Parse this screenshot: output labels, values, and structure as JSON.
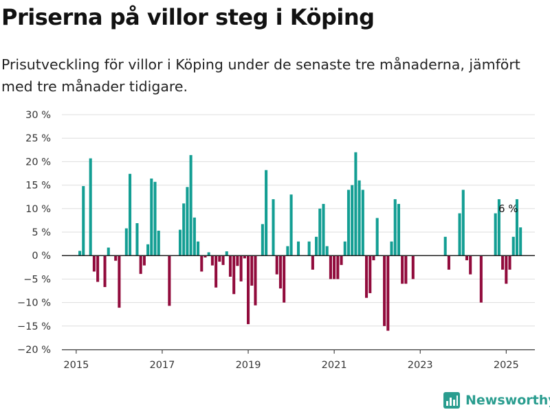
{
  "header": {
    "title": "Priserna på villor steg i Köping",
    "subtitle": "Prisutveckling för villor i Köping under de senaste tre månaderna, jämfört med tre månader tidigare."
  },
  "brand": {
    "name": "Newsworthy",
    "icon": "bar-chart-logo-icon"
  },
  "colors": {
    "positive": "#139e93",
    "negative": "#910b3c",
    "grid": "#dddddd",
    "axis": "#222222",
    "brand": "#2a9d8f"
  },
  "chart_data": {
    "type": "bar",
    "x_start": "2015-02",
    "x_interval": "month",
    "xlim": [
      "2014-09",
      "2025-09"
    ],
    "ylim": [
      -20,
      30
    ],
    "yticks": [
      30,
      25,
      20,
      15,
      10,
      5,
      0,
      -5,
      -10,
      -15,
      -20
    ],
    "ytick_labels": [
      "30 %",
      "25 %",
      "20 %",
      "15 %",
      "10 %",
      "5 %",
      "0 %",
      "−5 %",
      "−10 %",
      "−15 %",
      "−20 %"
    ],
    "xticks": [
      "2015-01",
      "2017-01",
      "2019-01",
      "2021-01",
      "2023-01",
      "2025-01"
    ],
    "xtick_labels": [
      "2015",
      "2017",
      "2019",
      "2021",
      "2023",
      "2025"
    ],
    "grid": true,
    "values": [
      1,
      14.8,
      null,
      20.7,
      -3.4,
      -5.6,
      null,
      -6.7,
      1.7,
      null,
      -1.1,
      -11.1,
      null,
      5.8,
      17.4,
      null,
      6.9,
      -3.9,
      -2.1,
      2.4,
      16.4,
      15.7,
      5.3,
      null,
      null,
      -10.7,
      null,
      null,
      5.5,
      11.1,
      14.6,
      21.4,
      8.1,
      3.0,
      -3.4,
      -0.4,
      0.7,
      -2.1,
      -6.8,
      -1.3,
      -2.0,
      0.9,
      -4.5,
      -8.2,
      -2.2,
      -5.5,
      -0.6,
      -14.6,
      -6.4,
      -10.6,
      null,
      6.7,
      18.2,
      null,
      12.0,
      -4.0,
      -7.0,
      -10.0,
      2.0,
      13.0,
      null,
      3.0,
      null,
      null,
      3.0,
      -3.0,
      4.0,
      10.0,
      11.0,
      2.0,
      -5.0,
      -5.0,
      -5.0,
      -2.0,
      3.0,
      14.0,
      15.0,
      22.0,
      16.0,
      14.0,
      -9.0,
      -8.0,
      -1.0,
      8.0,
      null,
      -15.0,
      -16.0,
      3.0,
      12.0,
      11.0,
      -6.0,
      -6.0,
      null,
      -5.0,
      null,
      null,
      null,
      null,
      null,
      null,
      null,
      null,
      4.0,
      -3.0,
      null,
      null,
      9.0,
      14.0,
      -1.0,
      -4.0,
      null,
      null,
      -10.0,
      null,
      null,
      null,
      9.0,
      12.0,
      -3.0,
      -6.0,
      -3.0,
      4.0,
      12.0,
      6.0
    ],
    "annotation": {
      "text": "6 %",
      "x": "2025-01",
      "y": 6
    }
  }
}
